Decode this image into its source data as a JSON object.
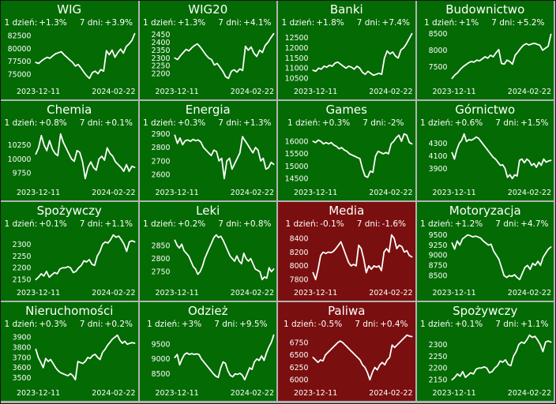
{
  "colors": {
    "positive_bg": "#046a04",
    "negative_bg": "#7a0f0f",
    "line": "#ffffff",
    "text": "#ffffff",
    "divider": "#b3b3b3"
  },
  "labels": {
    "day": "1 dzień:",
    "week": "7 dni:"
  },
  "dates": {
    "start": "2023-12-11",
    "end": "2024-02-22"
  },
  "chart_data": [
    {
      "type": "line",
      "title": "WIG",
      "bg": "green",
      "day_label": "1 dzień:",
      "day_change": "+1.3%",
      "week_label": "7 dni:",
      "week_change": "+3.9%",
      "x_start": "2023-12-11",
      "x_end": "2024-02-22",
      "yticks": [
        82500,
        80000,
        77500,
        75000
      ],
      "values": [
        77300,
        77100,
        77600,
        78000,
        78300,
        78100,
        78600,
        79000,
        79200,
        79400,
        78800,
        78300,
        77800,
        77300,
        76600,
        76900,
        76200,
        75400,
        74700,
        74200,
        75300,
        75600,
        75100,
        75900,
        75600,
        79600,
        78800,
        79700,
        78300,
        79200,
        79900,
        79100,
        80400,
        80900,
        81600,
        82900
      ]
    },
    {
      "type": "line",
      "title": "WIG20",
      "bg": "green",
      "day_label": "1 dzień:",
      "day_change": "+1.3%",
      "week_label": "7 dni:",
      "week_change": "+4.1%",
      "x_start": "2023-12-11",
      "x_end": "2024-02-22",
      "yticks": [
        2450,
        2400,
        2350,
        2300,
        2250,
        2200
      ],
      "values": [
        2300,
        2290,
        2315,
        2335,
        2355,
        2345,
        2365,
        2380,
        2390,
        2370,
        2345,
        2320,
        2300,
        2290,
        2255,
        2265,
        2240,
        2215,
        2180,
        2170,
        2215,
        2225,
        2210,
        2230,
        2220,
        2375,
        2350,
        2370,
        2330,
        2310,
        2350,
        2335,
        2380,
        2400,
        2430,
        2455
      ]
    },
    {
      "type": "line",
      "title": "Banki",
      "bg": "green",
      "day_label": "1 dzień:",
      "day_change": "+1.8%",
      "week_label": "7 dni:",
      "week_change": "+7.4%",
      "x_start": "2023-12-11",
      "x_end": "2024-02-22",
      "yticks": [
        12500,
        12000,
        11500,
        11000,
        10500
      ],
      "values": [
        10900,
        10850,
        11000,
        10950,
        11100,
        11050,
        11150,
        11100,
        11250,
        11300,
        11200,
        11100,
        11000,
        11100,
        11050,
        10950,
        11100,
        11000,
        10800,
        10700,
        10850,
        10750,
        10650,
        10700,
        10750,
        10700,
        11500,
        11850,
        11700,
        11800,
        11600,
        11500,
        11900,
        12000,
        12200,
        12450,
        12700
      ]
    },
    {
      "type": "line",
      "title": "Budownictwo",
      "bg": "green",
      "day_label": "1 dzień:",
      "day_change": "+1%",
      "week_label": "7 dni:",
      "week_change": "+5.2%",
      "x_start": "2023-12-11",
      "x_end": "2024-02-22",
      "yticks": [
        8500,
        8000,
        7500
      ],
      "values": [
        7150,
        7250,
        7320,
        7420,
        7500,
        7560,
        7620,
        7660,
        7640,
        7700,
        7680,
        7740,
        7800,
        7760,
        7850,
        7800,
        7920,
        8020,
        7600,
        7580,
        7700,
        7660,
        7580,
        7850,
        7950,
        8060,
        8150,
        8200,
        8160,
        8190,
        8210,
        8180,
        8150,
        8000,
        8060,
        8120,
        8480
      ]
    },
    {
      "type": "line",
      "title": "Chemia",
      "bg": "green",
      "day_label": "1 dzień:",
      "day_change": "+0.8%",
      "week_label": "7 dni:",
      "week_change": "+0.1%",
      "x_start": "2023-12-11",
      "x_end": "2024-02-22",
      "yticks": [
        10250,
        10000,
        9750
      ],
      "values": [
        10090,
        10200,
        10420,
        10250,
        10150,
        10330,
        10180,
        10100,
        10060,
        10450,
        10300,
        10200,
        10100,
        10000,
        9960,
        10150,
        10120,
        9950,
        9650,
        9850,
        9950,
        9850,
        9800,
        10000,
        10050,
        9980,
        10200,
        10100,
        10050,
        9950,
        9900,
        9850,
        9780,
        9900,
        9780,
        9870,
        9850
      ]
    },
    {
      "type": "line",
      "title": "Energia",
      "bg": "green",
      "day_label": "1 dzień:",
      "day_change": "+0.3%",
      "week_label": "7 dni:",
      "week_change": "+1.3%",
      "x_start": "2023-12-11",
      "x_end": "2024-02-22",
      "yticks": [
        2900,
        2800,
        2700,
        2600
      ],
      "values": [
        2890,
        2830,
        2870,
        2820,
        2850,
        2855,
        2845,
        2860,
        2850,
        2855,
        2840,
        2800,
        2780,
        2760,
        2740,
        2780,
        2770,
        2700,
        2720,
        2570,
        2700,
        2720,
        2640,
        2680,
        2720,
        2760,
        2880,
        2850,
        2820,
        2790,
        2760,
        2800,
        2780,
        2700,
        2720,
        2640,
        2650,
        2690,
        2675
      ]
    },
    {
      "type": "line",
      "title": "Games",
      "bg": "green",
      "day_label": "1 dzień:",
      "day_change": "+0.3%",
      "week_label": "7 dni:",
      "week_change": "-2%",
      "x_start": "2023-12-11",
      "x_end": "2024-02-22",
      "yticks": [
        16000,
        15500,
        15000,
        14500
      ],
      "values": [
        16000,
        15950,
        16050,
        16000,
        15900,
        15950,
        15900,
        15950,
        15850,
        15800,
        15700,
        15750,
        15650,
        15600,
        15500,
        15450,
        15400,
        15350,
        15300,
        14900,
        14600,
        14550,
        14800,
        14750,
        15400,
        15600,
        15550,
        15500,
        15550,
        15500,
        15900,
        16000,
        16150,
        16250,
        16000,
        16300,
        16250,
        15950,
        15900
      ]
    },
    {
      "type": "line",
      "title": "Górnictwo",
      "bg": "green",
      "day_label": "1 dzień:",
      "day_change": "+0.6%",
      "week_label": "7 dni:",
      "week_change": "+1.5%",
      "x_start": "2023-12-11",
      "x_end": "2024-02-22",
      "yticks": [
        4300,
        4100,
        3900
      ],
      "values": [
        4150,
        4050,
        4200,
        4300,
        4350,
        4450,
        4330,
        4360,
        4350,
        4370,
        4400,
        4380,
        4330,
        4280,
        4230,
        4180,
        4130,
        4080,
        4050,
        4000,
        3950,
        3960,
        3900,
        3760,
        3800,
        3740,
        3800,
        3780,
        4030,
        4050,
        3990,
        4050,
        4020,
        3950,
        3980,
        3920,
        4000,
        3950,
        4050,
        4000,
        4020,
        4030
      ]
    },
    {
      "type": "line",
      "title": "Spożywczy",
      "bg": "green",
      "day_label": "1 dzień:",
      "day_change": "+0.1%",
      "week_label": "7 dni:",
      "week_change": "+1.1%",
      "x_start": "2023-12-11",
      "x_end": "2024-02-22",
      "yticks": [
        2300,
        2250,
        2200,
        2150
      ],
      "values": [
        2150,
        2160,
        2175,
        2165,
        2185,
        2160,
        2170,
        2180,
        2175,
        2195,
        2200,
        2200,
        2205,
        2200,
        2180,
        2185,
        2200,
        2210,
        2230,
        2225,
        2235,
        2215,
        2210,
        2250,
        2270,
        2300,
        2310,
        2305,
        2320,
        2340,
        2330,
        2335,
        2320,
        2300,
        2270,
        2310,
        2315,
        2310
      ]
    },
    {
      "type": "line",
      "title": "Leki",
      "bg": "green",
      "day_label": "1 dzień:",
      "day_change": "+0.2%",
      "week_label": "7 dni:",
      "week_change": "+0.8%",
      "x_start": "2023-12-11",
      "x_end": "2024-02-22",
      "yticks": [
        2850,
        2800,
        2750
      ],
      "values": [
        2870,
        2850,
        2840,
        2855,
        2830,
        2820,
        2810,
        2790,
        2770,
        2760,
        2740,
        2750,
        2770,
        2800,
        2820,
        2840,
        2860,
        2880,
        2890,
        2880,
        2885,
        2870,
        2850,
        2830,
        2810,
        2800,
        2790,
        2810,
        2790,
        2780,
        2820,
        2800,
        2790,
        2800,
        2780,
        2760,
        2755,
        2750,
        2720,
        2730,
        2725,
        2765,
        2750,
        2760
      ]
    },
    {
      "type": "line",
      "title": "Media",
      "bg": "red",
      "day_label": "1 dzień:",
      "day_change": "-0.1%",
      "week_label": "7 dni:",
      "week_change": "-1.6%",
      "x_start": "2023-12-11",
      "x_end": "2024-02-22",
      "yticks": [
        8400,
        8200,
        8000,
        7800
      ],
      "values": [
        7900,
        7800,
        7950,
        8150,
        8200,
        8180,
        8200,
        8190,
        8210,
        8250,
        8300,
        8350,
        8250,
        8150,
        8050,
        8000,
        8020,
        8000,
        8300,
        8250,
        8100,
        7900,
        8000,
        7950,
        8000,
        7980,
        8000,
        7930,
        8200,
        8250,
        8200,
        8450,
        8400,
        8250,
        8300,
        8280,
        8200,
        8220,
        8150,
        8130
      ]
    },
    {
      "type": "line",
      "title": "Motoryzacja",
      "bg": "green",
      "day_label": "1 dzień:",
      "day_change": "+1.2%",
      "week_label": "7 dni:",
      "week_change": "+4.7%",
      "x_start": "2023-12-11",
      "x_end": "2024-02-22",
      "yticks": [
        9500,
        9250,
        9000,
        8750,
        8500
      ],
      "values": [
        9300,
        9150,
        9350,
        9250,
        9400,
        9450,
        9500,
        9480,
        9450,
        9470,
        9450,
        9420,
        9350,
        9300,
        9250,
        9270,
        9100,
        9000,
        8900,
        8700,
        8500,
        8450,
        8500,
        8480,
        8520,
        8450,
        8400,
        8550,
        8700,
        8750,
        8650,
        8800,
        8750,
        8850,
        8750,
        8950,
        9050,
        9150,
        9200
      ]
    },
    {
      "type": "line",
      "title": "Nieruchomości",
      "bg": "green",
      "day_label": "1 dzień:",
      "day_change": "+0.3%",
      "week_label": "7 dni:",
      "week_change": "+0.2%",
      "x_start": "2023-12-11",
      "x_end": "2024-02-22",
      "yticks": [
        3900,
        3800,
        3700,
        3600,
        3500
      ],
      "values": [
        3780,
        3700,
        3650,
        3600,
        3690,
        3660,
        3680,
        3640,
        3600,
        3570,
        3550,
        3540,
        3530,
        3520,
        3540,
        3520,
        3480,
        3660,
        3650,
        3640,
        3660,
        3700,
        3690,
        3720,
        3730,
        3700,
        3680,
        3750,
        3780,
        3820,
        3850,
        3880,
        3900,
        3920,
        3870,
        3840,
        3860,
        3830,
        3840,
        3845,
        3840
      ]
    },
    {
      "type": "line",
      "title": "Odzież",
      "bg": "green",
      "day_label": "1 dzień:",
      "day_change": "+3%",
      "week_label": "7 dni:",
      "week_change": "+9.5%",
      "x_start": "2023-12-11",
      "x_end": "2024-02-22",
      "yticks": [
        9500,
        9000,
        8500
      ],
      "values": [
        9050,
        9150,
        8800,
        9000,
        9150,
        9200,
        9150,
        9180,
        9150,
        9170,
        9150,
        9000,
        8900,
        8800,
        8700,
        8600,
        8500,
        8420,
        8380,
        8700,
        8900,
        8850,
        8600,
        8450,
        8400,
        8500,
        8480,
        8520,
        8450,
        8300,
        8500,
        8700,
        8650,
        8900,
        9000,
        8950,
        9100,
        8950,
        9200,
        9400,
        9550,
        9800
      ]
    },
    {
      "type": "line",
      "title": "Paliwa",
      "bg": "red",
      "day_label": "1 dzień:",
      "day_change": "-0.5%",
      "week_label": "7 dni:",
      "week_change": "+0.4%",
      "x_start": "2023-12-11",
      "x_end": "2024-02-22",
      "yticks": [
        6750,
        6500,
        6250,
        6000
      ],
      "values": [
        6450,
        6400,
        6350,
        6400,
        6380,
        6500,
        6550,
        6600,
        6650,
        6700,
        6750,
        6780,
        6750,
        6700,
        6650,
        6600,
        6550,
        6500,
        6450,
        6400,
        6300,
        6250,
        6150,
        6000,
        6150,
        6250,
        6200,
        6300,
        6350,
        6300,
        6400,
        6450,
        6700,
        6650,
        6700,
        6750,
        6800,
        6850,
        6900,
        6880,
        6870
      ]
    },
    {
      "type": "line",
      "title": "Spożywczy",
      "bg": "green",
      "day_label": "1 dzień:",
      "day_change": "+0.1%",
      "week_label": "7 dni:",
      "week_change": "+1.1%",
      "x_start": "2023-12-11",
      "x_end": "2024-02-22",
      "yticks": [
        2300,
        2250,
        2200,
        2150
      ],
      "values": [
        2150,
        2160,
        2175,
        2165,
        2185,
        2160,
        2170,
        2180,
        2175,
        2195,
        2200,
        2200,
        2205,
        2200,
        2180,
        2185,
        2200,
        2210,
        2230,
        2225,
        2235,
        2215,
        2210,
        2250,
        2270,
        2300,
        2310,
        2305,
        2320,
        2340,
        2330,
        2335,
        2320,
        2300,
        2270,
        2310,
        2315,
        2310
      ]
    }
  ]
}
